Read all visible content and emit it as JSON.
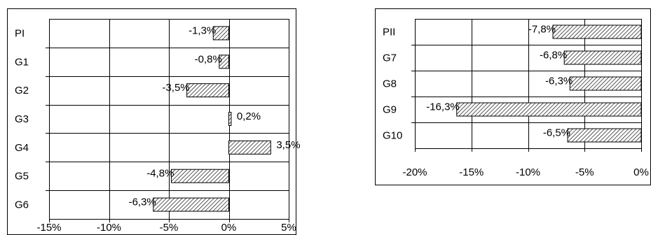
{
  "chart_data": [
    {
      "type": "bar",
      "orientation": "horizontal",
      "categories": [
        "PI",
        "G1",
        "G2",
        "G3",
        "G4",
        "G5",
        "G6"
      ],
      "values": [
        -1.3,
        -0.8,
        -3.5,
        0.2,
        3.5,
        -4.8,
        -6.3
      ],
      "value_labels": [
        "-1,3%",
        "-0,8%",
        "-3,5%",
        "0,2%",
        "3,5%",
        "-4,8%",
        "-6,3%"
      ],
      "xlim": [
        -15,
        5
      ],
      "xticks": [
        -15,
        -10,
        -5,
        0,
        5
      ],
      "xtick_labels": [
        "-15%",
        "-10%",
        "-5%",
        "0%",
        "5%"
      ],
      "grid": true,
      "legend": "none",
      "bar_fill": "hatched",
      "title": "",
      "xlabel": "",
      "ylabel": ""
    },
    {
      "type": "bar",
      "orientation": "horizontal",
      "categories": [
        "PII",
        "G7",
        "G8",
        "G9",
        "G10"
      ],
      "values": [
        -7.8,
        -6.8,
        -6.3,
        -16.3,
        -6.5
      ],
      "value_labels": [
        "-7,8%",
        "-6,8%",
        "-6,3%",
        "-16,3%",
        "-6,5%"
      ],
      "xlim": [
        -20,
        0
      ],
      "xticks": [
        -20,
        -15,
        -10,
        -5,
        0
      ],
      "xtick_labels": [
        "-20%",
        "-15%",
        "-10%",
        "-5%",
        "0%"
      ],
      "grid": true,
      "legend": "none",
      "bar_fill": "hatched",
      "title": "",
      "xlabel": "",
      "ylabel": ""
    }
  ],
  "colors": {
    "frame": "#000000",
    "grid": "#000000",
    "bar_fill": "#ffffff",
    "hatch": "#000000"
  }
}
